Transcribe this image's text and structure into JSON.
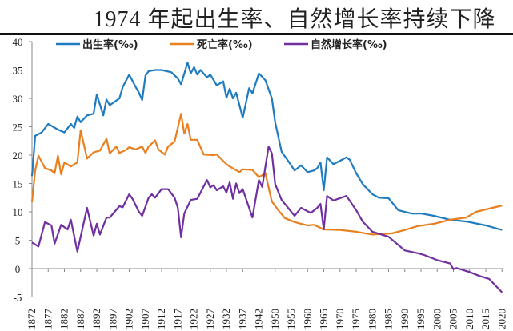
{
  "chart_data": {
    "type": "line",
    "title": "1974 年起出生率、自然增长率持续下降",
    "xlabel": "",
    "ylabel": "",
    "ylim": [
      -5,
      40
    ],
    "yticks": [
      -5,
      0,
      5,
      10,
      15,
      20,
      25,
      30,
      35,
      40
    ],
    "x_tick_labels": [
      "1872",
      "1877",
      "1882",
      "1887",
      "1892",
      "1897",
      "1902",
      "1907",
      "1912",
      "1917",
      "1922",
      "1927",
      "1932",
      "1937",
      "1942",
      "1950",
      "1955",
      "1960",
      "1965",
      "1970",
      "1975",
      "1980",
      "1985",
      "1990",
      "1995",
      "2000",
      "2005",
      "2010",
      "2015",
      "2020"
    ],
    "grid": false,
    "legend_position": "top",
    "series": [
      {
        "name": "出生率(‰)",
        "color": "#1f7bbf",
        "points": [
          [
            1872,
            16.3
          ],
          [
            1873,
            23.4
          ],
          [
            1875,
            24
          ],
          [
            1877,
            25.5
          ],
          [
            1880,
            24.5
          ],
          [
            1882,
            24
          ],
          [
            1884,
            25.5
          ],
          [
            1885,
            24.8
          ],
          [
            1886,
            26.8
          ],
          [
            1887,
            25.8
          ],
          [
            1889,
            27
          ],
          [
            1891,
            27.3
          ],
          [
            1892,
            30.7
          ],
          [
            1894,
            27
          ],
          [
            1895,
            29.8
          ],
          [
            1896,
            28.8
          ],
          [
            1899,
            30
          ],
          [
            1900,
            32
          ],
          [
            1902,
            34.2
          ],
          [
            1904,
            32
          ],
          [
            1905,
            31
          ],
          [
            1906,
            29.7
          ],
          [
            1907,
            34
          ],
          [
            1908,
            34.8
          ],
          [
            1910,
            35
          ],
          [
            1912,
            35
          ],
          [
            1915,
            34.6
          ],
          [
            1917,
            33.5
          ],
          [
            1918,
            32.5
          ],
          [
            1920,
            36.3
          ],
          [
            1921,
            34.4
          ],
          [
            1922,
            35.5
          ],
          [
            1923,
            34.2
          ],
          [
            1924,
            35
          ],
          [
            1926,
            33.7
          ],
          [
            1927,
            34.2
          ],
          [
            1929,
            32.3
          ],
          [
            1931,
            33
          ],
          [
            1932,
            30.1
          ],
          [
            1933,
            31.7
          ],
          [
            1934,
            30
          ],
          [
            1935,
            31
          ],
          [
            1937,
            26.6
          ],
          [
            1939,
            31.8
          ],
          [
            1940,
            30.9
          ],
          [
            1942,
            34.4
          ],
          [
            1944,
            33.2
          ],
          [
            1949,
            30
          ],
          [
            1950,
            25.8
          ],
          [
            1952,
            20.6
          ],
          [
            1954,
            19
          ],
          [
            1956,
            17.3
          ],
          [
            1958,
            18.2
          ],
          [
            1960,
            17
          ],
          [
            1962,
            17.3
          ],
          [
            1963,
            17.7
          ],
          [
            1964,
            18.7
          ],
          [
            1965,
            13.8
          ],
          [
            1966,
            19.6
          ],
          [
            1968,
            18.4
          ],
          [
            1970,
            19
          ],
          [
            1972,
            19.6
          ],
          [
            1973,
            19.2
          ],
          [
            1975,
            16.8
          ],
          [
            1977,
            14.9
          ],
          [
            1980,
            13.1
          ],
          [
            1982,
            12.5
          ],
          [
            1985,
            12.4
          ],
          [
            1988,
            10.3
          ],
          [
            1992,
            9.7
          ],
          [
            1995,
            9.7
          ],
          [
            1999,
            9.3
          ],
          [
            2004,
            8.6
          ],
          [
            2009,
            8.3
          ],
          [
            2015,
            7.6
          ],
          [
            2020,
            6.8
          ]
        ]
      },
      {
        "name": "死亡率(‰)",
        "color": "#e8801f",
        "points": [
          [
            1872,
            11.7
          ],
          [
            1873,
            17.3
          ],
          [
            1874,
            19.9
          ],
          [
            1876,
            17.7
          ],
          [
            1878,
            17.3
          ],
          [
            1879,
            16.8
          ],
          [
            1880,
            19.9
          ],
          [
            1881,
            16.6
          ],
          [
            1882,
            18.7
          ],
          [
            1884,
            18
          ],
          [
            1886,
            18.7
          ],
          [
            1887,
            24.4
          ],
          [
            1889,
            19.4
          ],
          [
            1891,
            20.5
          ],
          [
            1893,
            20.8
          ],
          [
            1895,
            22.9
          ],
          [
            1896,
            20.3
          ],
          [
            1898,
            21.5
          ],
          [
            1899,
            20.4
          ],
          [
            1901,
            20.9
          ],
          [
            1902,
            21.4
          ],
          [
            1904,
            21
          ],
          [
            1906,
            21.5
          ],
          [
            1907,
            20.4
          ],
          [
            1908,
            21.5
          ],
          [
            1910,
            22.6
          ],
          [
            1911,
            21
          ],
          [
            1913,
            20.1
          ],
          [
            1914,
            21.5
          ],
          [
            1916,
            22.4
          ],
          [
            1918,
            27.3
          ],
          [
            1919,
            23.8
          ],
          [
            1920,
            25.5
          ],
          [
            1921,
            22.7
          ],
          [
            1923,
            22.7
          ],
          [
            1925,
            20.1
          ],
          [
            1928,
            20
          ],
          [
            1929,
            20.1
          ],
          [
            1932,
            18.4
          ],
          [
            1933,
            18
          ],
          [
            1936,
            17
          ],
          [
            1937,
            17.5
          ],
          [
            1940,
            17.4
          ],
          [
            1942,
            16.1
          ],
          [
            1944,
            16.8
          ],
          [
            1949,
            11.8
          ],
          [
            1951,
            10.3
          ],
          [
            1953,
            8.9
          ],
          [
            1956,
            8.2
          ],
          [
            1958,
            7.9
          ],
          [
            1960,
            7.6
          ],
          [
            1962,
            7.7
          ],
          [
            1965,
            6.9
          ],
          [
            1970,
            6.8
          ],
          [
            1975,
            6.5
          ],
          [
            1980,
            6.0
          ],
          [
            1986,
            6.2
          ],
          [
            1990,
            6.8
          ],
          [
            1994,
            7.5
          ],
          [
            1999,
            7.9
          ],
          [
            2004,
            8.6
          ],
          [
            2009,
            9
          ],
          [
            2012,
            10
          ],
          [
            2017,
            10.7
          ],
          [
            2020,
            11.1
          ]
        ]
      },
      {
        "name": "自然增长率(‰)",
        "color": "#7030a0",
        "points": [
          [
            1872,
            4.6
          ],
          [
            1874,
            3.9
          ],
          [
            1876,
            8.2
          ],
          [
            1878,
            7.6
          ],
          [
            1879,
            4.4
          ],
          [
            1881,
            7.7
          ],
          [
            1883,
            6.9
          ],
          [
            1884,
            8.6
          ],
          [
            1886,
            3.0
          ],
          [
            1889,
            10.7
          ],
          [
            1891,
            5.8
          ],
          [
            1892,
            7.9
          ],
          [
            1893,
            6
          ],
          [
            1895,
            9
          ],
          [
            1896,
            9
          ],
          [
            1899,
            11
          ],
          [
            1900,
            10.8
          ],
          [
            1902,
            13.1
          ],
          [
            1903,
            12.3
          ],
          [
            1905,
            10
          ],
          [
            1906,
            9.3
          ],
          [
            1908,
            12.5
          ],
          [
            1909,
            13.1
          ],
          [
            1910,
            12.5
          ],
          [
            1912,
            14
          ],
          [
            1914,
            14
          ],
          [
            1916,
            12.5
          ],
          [
            1917,
            10.7
          ],
          [
            1918,
            5.5
          ],
          [
            1919,
            9.7
          ],
          [
            1921,
            12.1
          ],
          [
            1923,
            12.3
          ],
          [
            1926,
            15.6
          ],
          [
            1927,
            14.3
          ],
          [
            1928,
            14.7
          ],
          [
            1929,
            13.8
          ],
          [
            1931,
            14.5
          ],
          [
            1932,
            13.4
          ],
          [
            1933,
            15.2
          ],
          [
            1934,
            12.3
          ],
          [
            1935,
            15
          ],
          [
            1936,
            13.3
          ],
          [
            1937,
            14
          ],
          [
            1940,
            9
          ],
          [
            1942,
            15.6
          ],
          [
            1943,
            14.4
          ],
          [
            1945,
            21.5
          ],
          [
            1949,
            20.3
          ],
          [
            1950,
            14.9
          ],
          [
            1952,
            12.1
          ],
          [
            1956,
            9.3
          ],
          [
            1958,
            10.7
          ],
          [
            1961,
            9.8
          ],
          [
            1963,
            10.7
          ],
          [
            1964,
            11.4
          ],
          [
            1965,
            6.9
          ],
          [
            1966,
            12.8
          ],
          [
            1968,
            12
          ],
          [
            1972,
            12.8
          ],
          [
            1975,
            10.3
          ],
          [
            1977,
            8.3
          ],
          [
            1980,
            6.5
          ],
          [
            1985,
            5.6
          ],
          [
            1990,
            3.2
          ],
          [
            1994,
            2.7
          ],
          [
            1996,
            2.4
          ],
          [
            2000,
            1.5
          ],
          [
            2004,
            0.9
          ],
          [
            2005,
            -0.1
          ],
          [
            2006,
            0.1
          ],
          [
            2010,
            -0.6
          ],
          [
            2013,
            -1.3
          ],
          [
            2016,
            -1.8
          ],
          [
            2020,
            -4.2
          ]
        ]
      }
    ]
  }
}
